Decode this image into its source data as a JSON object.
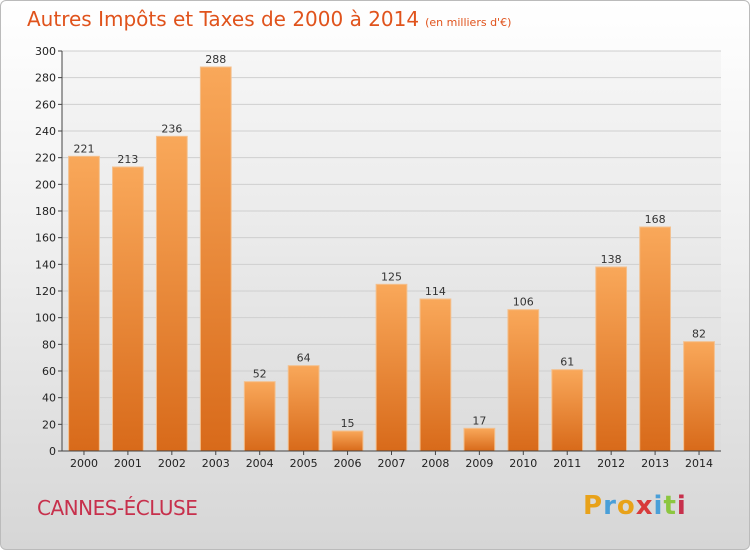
{
  "header": {
    "title": "Autres Impôts et Taxes de 2000 à 2014",
    "unit": "(en milliers d'€)"
  },
  "footer": {
    "commune": "CANNES-ÉCLUSE",
    "logo_letters": [
      "P",
      "r",
      "o",
      "x",
      "i",
      "t",
      "i"
    ],
    "logo_colors": [
      "#e8a21a",
      "#4a9fd8",
      "#e8a21a",
      "#d83b3b",
      "#4a9fd8",
      "#8cc63f",
      "#c7304c"
    ]
  },
  "colors": {
    "bar_top": "#f9a85a",
    "bar_bottom": "#d86a1a",
    "title": "#e0531c",
    "commune": "#c7304c"
  },
  "chart_data": {
    "type": "bar",
    "title": "Autres Impôts et Taxes de 2000 à 2014",
    "subtitle": "(en milliers d'€)",
    "categories": [
      "2000",
      "2001",
      "2002",
      "2003",
      "2004",
      "2005",
      "2006",
      "2007",
      "2008",
      "2009",
      "2010",
      "2011",
      "2012",
      "2013",
      "2014"
    ],
    "values": [
      221,
      213,
      236,
      288,
      52,
      64,
      15,
      125,
      114,
      17,
      106,
      61,
      138,
      168,
      82
    ],
    "value_labels": [
      "221",
      "213",
      "236",
      "288",
      "52",
      "64",
      "15",
      "125",
      "114",
      "17",
      "106",
      "61",
      "138",
      "168",
      "82"
    ],
    "ylim": [
      0,
      300
    ],
    "yticks": [
      0,
      20,
      40,
      60,
      80,
      100,
      120,
      140,
      160,
      180,
      200,
      220,
      240,
      260,
      280,
      300
    ],
    "ytick_labels": [
      "0",
      "20",
      "40",
      "60",
      "80",
      "100",
      "120",
      "140",
      "160",
      "180",
      "200",
      "220",
      "240",
      "260",
      "280",
      "300"
    ],
    "grid": true,
    "legend": "none"
  }
}
